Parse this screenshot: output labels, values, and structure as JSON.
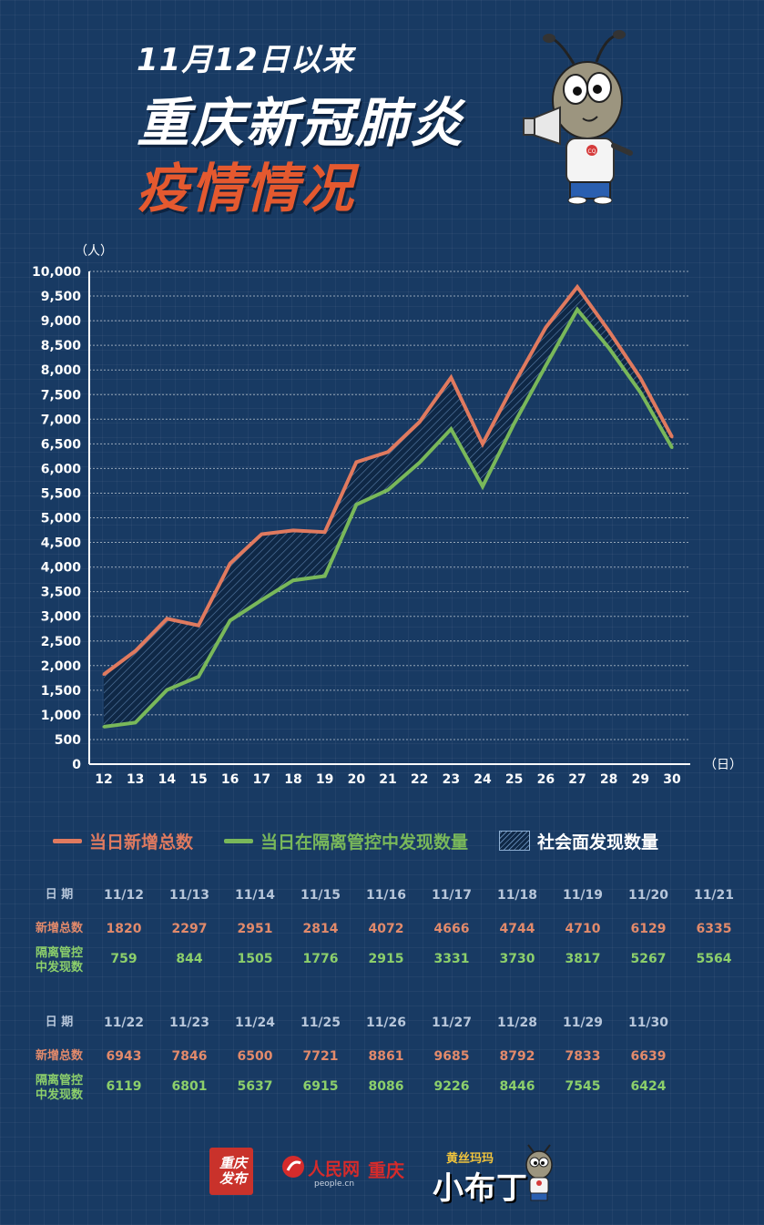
{
  "header": {
    "line1": "11月12日以来",
    "line2": "重庆新冠肺炎",
    "line3": "疫情情况"
  },
  "mascot_badge": "CQ",
  "chart_data": {
    "type": "line",
    "x": [
      "12",
      "13",
      "14",
      "15",
      "16",
      "17",
      "18",
      "19",
      "20",
      "21",
      "22",
      "23",
      "24",
      "25",
      "26",
      "27",
      "28",
      "29",
      "30"
    ],
    "ylim": [
      0,
      10000
    ],
    "yticks": [
      0,
      500,
      1000,
      1500,
      2000,
      2500,
      3000,
      3500,
      4000,
      4500,
      5000,
      5500,
      6000,
      6500,
      7000,
      7500,
      8000,
      8500,
      9000,
      9500,
      10000
    ],
    "ytick_labels": [
      "0",
      "500",
      "1,000",
      "1,500",
      "2,000",
      "2,500",
      "3,000",
      "3,500",
      "4,000",
      "4,500",
      "5,000",
      "5,500",
      "6,000",
      "6,500",
      "7,000",
      "7,500",
      "8,000",
      "8,500",
      "9,000",
      "9,500",
      "10,000"
    ],
    "yunit": "（人）",
    "xunit": "（日）",
    "grid": true,
    "legend_position": "bottom",
    "series": [
      {
        "name": "当日新增总数",
        "color": "#e07a5f",
        "values": [
          1820,
          2297,
          2951,
          2814,
          4072,
          4666,
          4744,
          4710,
          6129,
          6335,
          6943,
          7846,
          6500,
          7721,
          8861,
          9685,
          8792,
          7833,
          6639
        ]
      },
      {
        "name": "当日在隔离管控中发现数量",
        "color": "#79b85a",
        "values": [
          759,
          844,
          1505,
          1776,
          2915,
          3331,
          3730,
          3817,
          5267,
          5564,
          6119,
          6801,
          5637,
          6915,
          8086,
          9226,
          8446,
          7545,
          6424
        ]
      }
    ],
    "area_between": {
      "name": "社会面发现数量",
      "style": "hatch"
    }
  },
  "table": {
    "date_header": "日 期",
    "total_header": "新增总数",
    "iso_header_1": "隔离管控",
    "iso_header_2": "中发现数",
    "part1": {
      "dates": [
        "11/12",
        "11/13",
        "11/14",
        "11/15",
        "11/16",
        "11/17",
        "11/18",
        "11/19",
        "11/20",
        "11/21"
      ],
      "total": [
        "1820",
        "2297",
        "2951",
        "2814",
        "4072",
        "4666",
        "4744",
        "4710",
        "6129",
        "6335"
      ],
      "iso": [
        "759",
        "844",
        "1505",
        "1776",
        "2915",
        "3331",
        "3730",
        "3817",
        "5267",
        "5564"
      ]
    },
    "part2": {
      "dates": [
        "11/22",
        "11/23",
        "11/24",
        "11/25",
        "11/26",
        "11/27",
        "11/28",
        "11/29",
        "11/30"
      ],
      "total": [
        "6943",
        "7846",
        "6500",
        "7721",
        "8861",
        "9685",
        "8792",
        "7833",
        "6639"
      ],
      "iso": [
        "6119",
        "6801",
        "5637",
        "6915",
        "8086",
        "9226",
        "8446",
        "7545",
        "6424"
      ]
    }
  },
  "footer": {
    "logo1": "重庆发布",
    "logo2": "人民网",
    "logo2_sub": "people.cn",
    "logo3": "重庆",
    "logo4_top": "黄丝玛玛",
    "logo4_main": "小布丁"
  }
}
